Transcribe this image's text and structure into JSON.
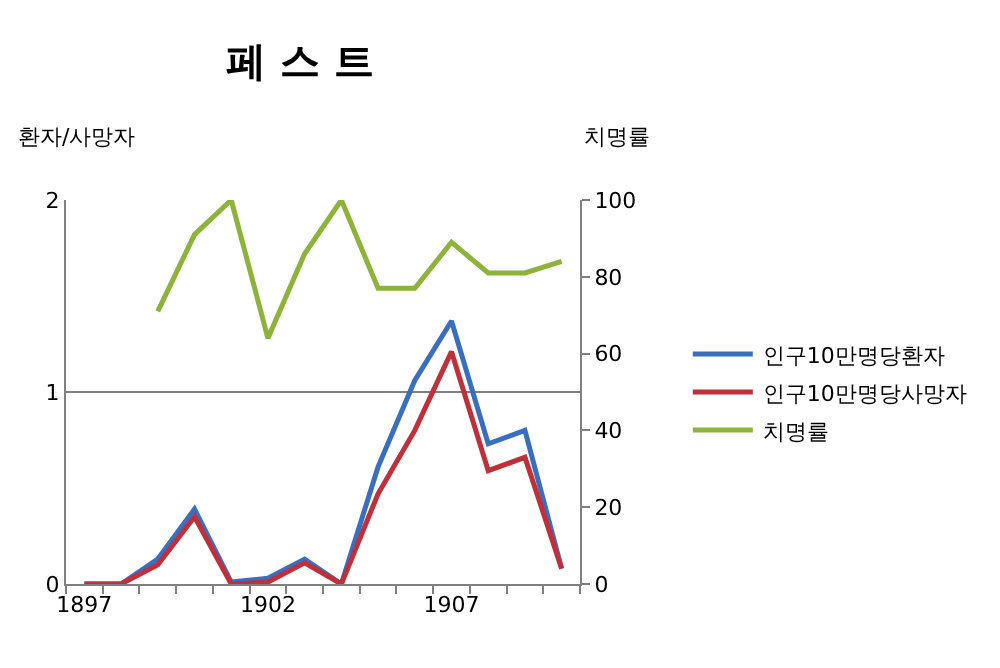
{
  "chart_data": {
    "type": "line",
    "title": "페 스 트",
    "ylabel": "환자/사망자",
    "y2label": "치명률",
    "categories": [
      "1897",
      null,
      null,
      null,
      null,
      "1902",
      null,
      null,
      null,
      null,
      "1907",
      null,
      null,
      null
    ],
    "series": [
      {
        "name": "인구10만명당환자",
        "color": "#3a6fc0",
        "values": [
          0,
          0,
          0.13,
          0.39,
          0.01,
          0.03,
          0.13,
          0,
          0.61,
          1.06,
          1.37,
          0.73,
          0.8,
          0.08
        ]
      },
      {
        "name": "인구10만명당사망자",
        "color": "#c0303a",
        "values": [
          0,
          0,
          0.1,
          0.35,
          0,
          0.01,
          0.11,
          0,
          0.47,
          0.8,
          1.21,
          0.59,
          0.66,
          0.08
        ]
      },
      {
        "name": "치명률",
        "color": "#8db33a",
        "axis": "y2",
        "values": [
          null,
          null,
          71,
          91,
          100,
          64,
          86,
          100,
          77,
          77,
          89,
          81,
          81,
          84
        ]
      }
    ],
    "ylim": [
      0,
      2
    ],
    "yticks": [
      0,
      1,
      2
    ],
    "y2lim": [
      0,
      100
    ],
    "y2ticks": [
      0,
      20,
      40,
      60,
      80,
      100
    ],
    "grid": "y",
    "legend": "right",
    "marker": "none",
    "line_style": "solid"
  }
}
